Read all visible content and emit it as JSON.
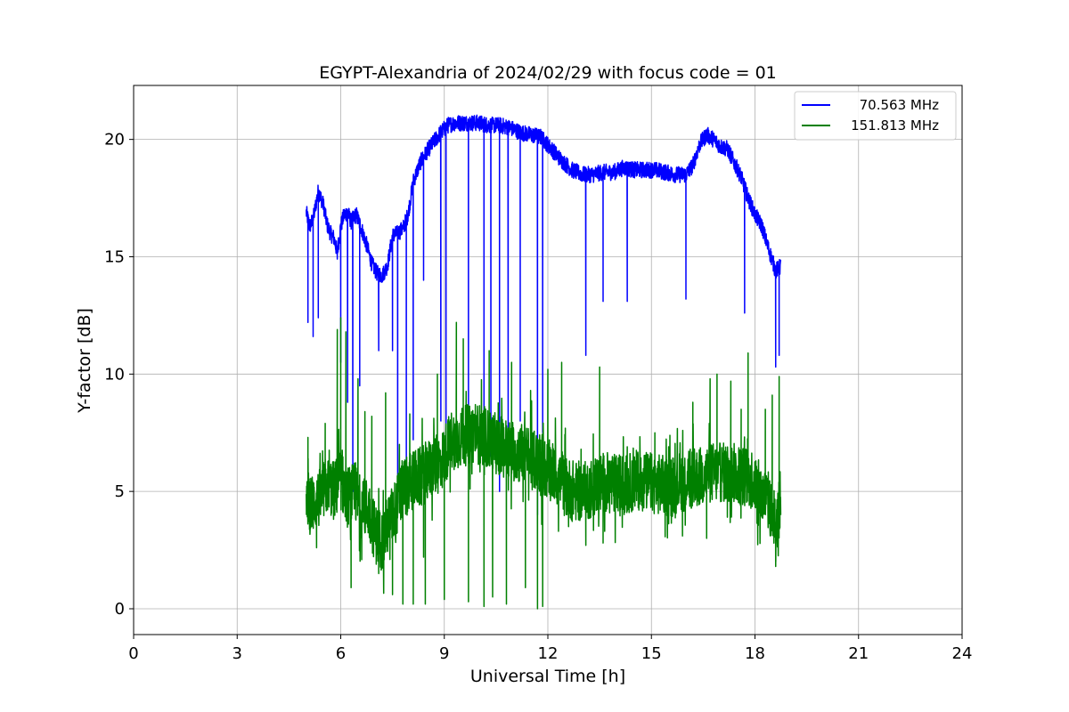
{
  "chart_data": {
    "type": "line",
    "title": "EGYPT-Alexandria of 2024/02/29 with focus code = 01",
    "xlabel": "Universal Time [h]",
    "ylabel": "Y-factor [dB]",
    "xlim": [
      0,
      24
    ],
    "ylim": [
      -1.1,
      22.3
    ],
    "xticks": [
      0,
      3,
      6,
      9,
      12,
      15,
      18,
      21,
      24
    ],
    "yticks": [
      0,
      5,
      10,
      15,
      20
    ],
    "grid": true,
    "legend_position": "top-right",
    "series": [
      {
        "name": "70.563 MHz",
        "color": "#0000ff",
        "x": [
          5.0,
          5.1,
          5.2,
          5.35,
          5.5,
          5.6,
          5.7,
          5.8,
          5.9,
          6.0,
          6.1,
          6.2,
          6.3,
          6.45,
          6.6,
          6.75,
          6.9,
          7.05,
          7.2,
          7.35,
          7.5,
          7.65,
          7.8,
          7.95,
          8.1,
          8.3,
          8.5,
          8.7,
          8.9,
          9.1,
          9.3,
          9.5,
          9.7,
          10.0,
          10.3,
          10.6,
          10.9,
          11.2,
          11.5,
          11.8,
          12.1,
          12.4,
          12.7,
          13.0,
          13.3,
          13.6,
          13.9,
          14.2,
          14.5,
          14.8,
          15.1,
          15.4,
          15.7,
          16.0,
          16.2,
          16.4,
          16.6,
          16.8,
          17.0,
          17.2,
          17.4,
          17.6,
          17.8,
          18.0,
          18.2,
          18.4,
          18.6,
          18.75
        ],
        "y": [
          16.9,
          16.3,
          16.6,
          17.8,
          17.2,
          16.4,
          16.0,
          15.8,
          15.2,
          16.3,
          16.8,
          16.9,
          16.5,
          16.8,
          16.2,
          15.5,
          14.7,
          14.3,
          14.2,
          14.6,
          15.9,
          16.0,
          16.2,
          16.8,
          18.2,
          19.0,
          19.5,
          19.9,
          20.3,
          20.6,
          20.7,
          20.7,
          20.7,
          20.7,
          20.6,
          20.6,
          20.5,
          20.3,
          20.2,
          20.1,
          19.6,
          19.1,
          18.7,
          18.5,
          18.5,
          18.6,
          18.6,
          18.8,
          18.7,
          18.7,
          18.7,
          18.6,
          18.5,
          18.5,
          18.9,
          19.8,
          20.2,
          20.0,
          19.7,
          19.6,
          19.0,
          18.4,
          17.5,
          16.8,
          16.3,
          15.3,
          14.4,
          14.6
        ],
        "dropouts": [
          [
            5.05,
            12.2
          ],
          [
            5.2,
            11.6
          ],
          [
            5.35,
            12.4
          ],
          [
            5.9,
            14.9
          ],
          [
            6.0,
            10.5
          ],
          [
            6.2,
            8.8
          ],
          [
            6.35,
            5.0
          ],
          [
            6.55,
            9.5
          ],
          [
            7.1,
            11.0
          ],
          [
            7.5,
            11.0
          ],
          [
            7.65,
            4.5
          ],
          [
            7.9,
            6.0
          ],
          [
            8.1,
            7.2
          ],
          [
            8.4,
            14.0
          ],
          [
            8.9,
            8.0
          ],
          [
            9.05,
            6.5
          ],
          [
            9.7,
            7.0
          ],
          [
            10.15,
            7.5
          ],
          [
            10.35,
            6.5
          ],
          [
            10.6,
            5.0
          ],
          [
            10.85,
            7.2
          ],
          [
            11.2,
            8.0
          ],
          [
            11.7,
            4.0
          ],
          [
            11.85,
            7.5
          ],
          [
            13.1,
            10.8
          ],
          [
            13.6,
            13.1
          ],
          [
            14.3,
            13.1
          ],
          [
            16.0,
            13.2
          ],
          [
            17.7,
            12.6
          ],
          [
            18.6,
            10.3
          ],
          [
            18.7,
            10.8
          ]
        ]
      },
      {
        "name": "151.813 MHz",
        "color": "#008000",
        "x": [
          5.0,
          5.2,
          5.4,
          5.6,
          5.8,
          6.0,
          6.2,
          6.4,
          6.6,
          6.8,
          7.0,
          7.2,
          7.4,
          7.6,
          7.8,
          8.0,
          8.3,
          8.6,
          8.9,
          9.2,
          9.5,
          9.8,
          10.1,
          10.4,
          10.7,
          11.0,
          11.3,
          11.6,
          11.9,
          12.2,
          12.5,
          12.8,
          13.1,
          13.4,
          13.7,
          14.0,
          14.3,
          14.6,
          14.9,
          15.2,
          15.5,
          15.8,
          16.1,
          16.4,
          16.7,
          17.0,
          17.3,
          17.6,
          17.9,
          18.2,
          18.4,
          18.6,
          18.75
        ],
        "y": [
          4.2,
          4.5,
          4.7,
          5.3,
          5.0,
          5.5,
          4.8,
          4.9,
          4.3,
          4.3,
          3.2,
          2.9,
          3.7,
          4.3,
          5.1,
          5.4,
          5.6,
          6.0,
          6.2,
          7.2,
          7.3,
          7.5,
          7.4,
          7.1,
          6.9,
          6.7,
          6.6,
          6.3,
          6.0,
          5.8,
          5.2,
          5.0,
          5.0,
          5.3,
          5.4,
          5.3,
          5.3,
          5.5,
          5.4,
          5.3,
          5.2,
          5.4,
          5.5,
          5.6,
          5.8,
          5.8,
          5.8,
          5.7,
          5.6,
          4.8,
          4.6,
          3.2,
          4.8
        ],
        "spikes": [
          [
            5.05,
            7.3
          ],
          [
            5.3,
            2.6
          ],
          [
            5.55,
            7.9
          ],
          [
            5.9,
            11.9
          ],
          [
            6.0,
            12.4
          ],
          [
            6.15,
            11.8
          ],
          [
            6.3,
            0.9
          ],
          [
            6.5,
            9.8
          ],
          [
            6.7,
            8.4
          ],
          [
            6.9,
            8.2
          ],
          [
            7.1,
            1.5
          ],
          [
            7.3,
            9.2
          ],
          [
            7.5,
            0.6
          ],
          [
            7.7,
            7.0
          ],
          [
            7.8,
            0.2
          ],
          [
            8.0,
            8.3
          ],
          [
            8.1,
            0.2
          ],
          [
            8.4,
            2.2
          ],
          [
            8.45,
            0.2
          ],
          [
            8.8,
            10.0
          ],
          [
            9.0,
            0.4
          ],
          [
            9.35,
            12.2
          ],
          [
            9.55,
            11.5
          ],
          [
            9.7,
            0.3
          ],
          [
            9.9,
            8.7
          ],
          [
            10.15,
            0.1
          ],
          [
            10.3,
            11.0
          ],
          [
            10.4,
            0.5
          ],
          [
            10.8,
            0.2
          ],
          [
            10.95,
            10.5
          ],
          [
            11.35,
            0.9
          ],
          [
            11.5,
            9.3
          ],
          [
            11.7,
            0.0
          ],
          [
            11.85,
            0.1
          ],
          [
            12.0,
            10.2
          ],
          [
            12.4,
            10.5
          ],
          [
            12.6,
            3.5
          ],
          [
            13.1,
            2.7
          ],
          [
            13.5,
            10.3
          ],
          [
            13.6,
            2.8
          ],
          [
            14.3,
            6.9
          ],
          [
            15.1,
            7.5
          ],
          [
            15.5,
            6.9
          ],
          [
            15.9,
            3.1
          ],
          [
            16.2,
            8.8
          ],
          [
            16.6,
            3.0
          ],
          [
            16.7,
            9.8
          ],
          [
            16.9,
            10.0
          ],
          [
            17.2,
            3.9
          ],
          [
            17.3,
            9.7
          ],
          [
            17.6,
            8.5
          ],
          [
            17.8,
            10.9
          ],
          [
            18.1,
            6.3
          ],
          [
            18.3,
            8.5
          ],
          [
            18.5,
            9.1
          ],
          [
            18.6,
            1.8
          ],
          [
            18.7,
            9.9
          ]
        ]
      }
    ]
  }
}
